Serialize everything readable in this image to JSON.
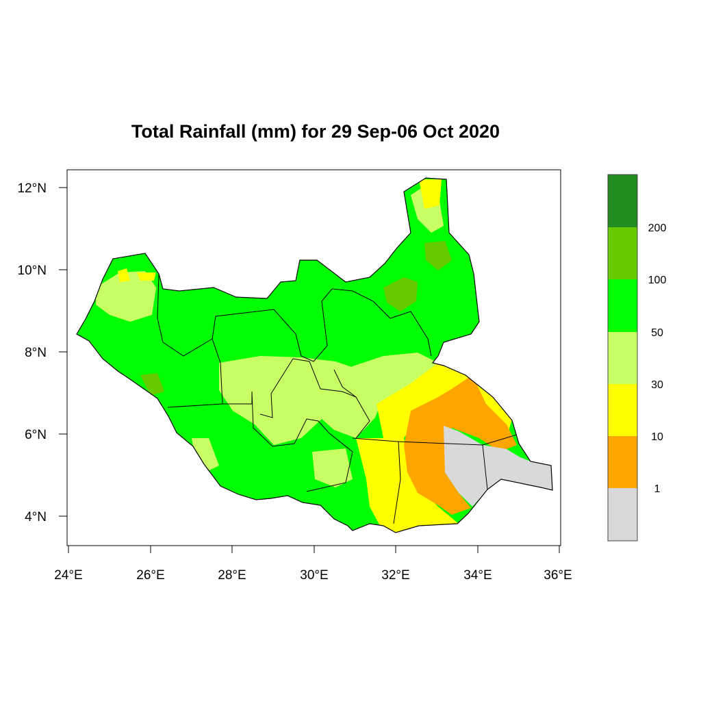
{
  "title": "Total Rainfall (mm) for 29 Sep-06 Oct 2020",
  "x_ticks": [
    "24°E",
    "26°E",
    "28°E",
    "30°E",
    "32°E",
    "34°E",
    "36°E"
  ],
  "y_ticks": [
    "12°N",
    "10°N",
    "8°N",
    "6°N",
    "4°N"
  ],
  "legend": {
    "colors": [
      "#d9d9d9",
      "#ffa500",
      "#ffff00",
      "#c8ff64",
      "#00ff00",
      "#66cc00",
      "#228b22"
    ],
    "boundaries": [
      "1",
      "10",
      "30",
      "50",
      "100",
      "200"
    ]
  },
  "chart_data": {
    "type": "heatmap",
    "title": "Total Rainfall (mm) for 29 Sep-06 Oct 2020",
    "xlim": [
      24,
      36
    ],
    "ylim": [
      3.5,
      12.5
    ],
    "color_classes_mm": [
      "<1",
      "1-10",
      "10-30",
      "30-50",
      "50-100",
      "100-200",
      ">200"
    ],
    "legend_boundaries_mm": [
      1,
      10,
      30,
      50,
      100,
      200
    ],
    "grid": false
  }
}
